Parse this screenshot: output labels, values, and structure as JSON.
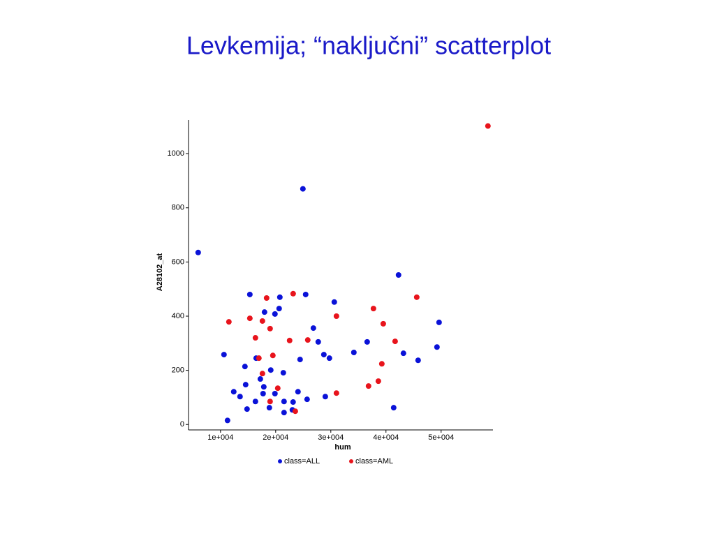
{
  "chart_data": {
    "type": "scatter",
    "title": "Levkemija; “naključni” scatterplot",
    "x_label": "hum",
    "y_label": "A28102_at",
    "xlim": [
      4200,
      59400
    ],
    "ylim": [
      -20,
      1124
    ],
    "xticks": [
      {
        "value": 10000,
        "label": "1e+004"
      },
      {
        "value": 20000,
        "label": "2e+004"
      },
      {
        "value": 30000,
        "label": "3e+004"
      },
      {
        "value": 40000,
        "label": "4e+004"
      },
      {
        "value": 50000,
        "label": "5e+004"
      }
    ],
    "yticks": [
      0,
      200,
      400,
      600,
      800,
      1000
    ],
    "legend": "bottom",
    "series": [
      {
        "name": "class=ALL",
        "color": "#0a12d8",
        "x": [
          5950,
          24940,
          42280,
          10630,
          14430,
          15320,
          17980,
          20760,
          20630,
          19870,
          25440,
          30630,
          26840,
          27720,
          28740,
          29750,
          24430,
          16460,
          19110,
          21390,
          17220,
          17850,
          14560,
          12400,
          13540,
          17720,
          19870,
          24050,
          16330,
          14810,
          18860,
          21520,
          23160,
          21520,
          25700,
          29000,
          11270,
          34180,
          36590,
          43170,
          45830,
          49250,
          49630,
          41400,
          23030
        ],
        "values": [
          635,
          870,
          552,
          258,
          214,
          480,
          415,
          470,
          428,
          408,
          480,
          452,
          356,
          305,
          258,
          245,
          240,
          245,
          201,
          191,
          168,
          139,
          147,
          121,
          103,
          114,
          114,
          121,
          85,
          57,
          62,
          85,
          83,
          44,
          93,
          103,
          15,
          266,
          305,
          263,
          237,
          286,
          377,
          62,
          54
        ]
      },
      {
        "name": "class=AML",
        "color": "#e8141c",
        "x": [
          58490,
          23170,
          18360,
          15320,
          11520,
          17600,
          18990,
          16330,
          22530,
          25820,
          31020,
          37730,
          39510,
          41660,
          45580,
          19490,
          16960,
          39250,
          17600,
          20380,
          38620,
          36840,
          31020,
          18990,
          23560
        ],
        "values": [
          1102,
          483,
          467,
          392,
          379,
          382,
          354,
          320,
          310,
          312,
          400,
          428,
          372,
          307,
          470,
          255,
          245,
          224,
          188,
          134,
          160,
          142,
          116,
          85,
          49
        ]
      }
    ]
  }
}
